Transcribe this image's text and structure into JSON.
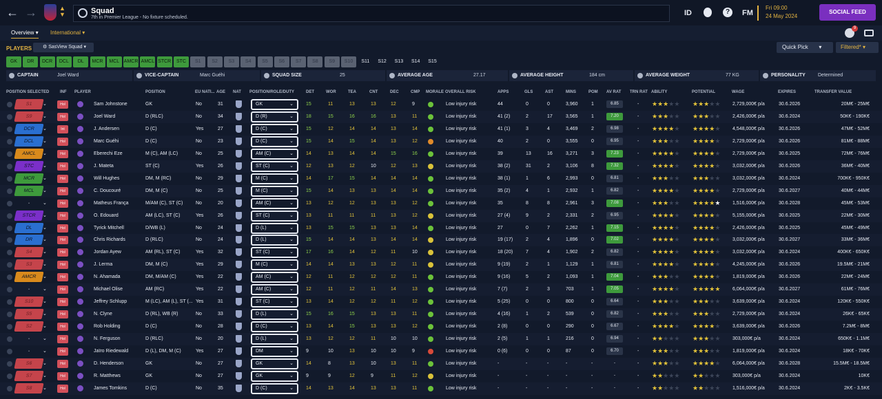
{
  "header": {
    "title": "Squad",
    "subtitle": "7th in Premier League - No fixture scheduled.",
    "id_label": "ID",
    "fm_label": "FM",
    "help": "?",
    "date_line1": "Fri 09:00",
    "date_line2": "24 May 2024",
    "social_label": "SOCIAL FEED",
    "notif_count": "9"
  },
  "subnav": {
    "tab1": "Overview",
    "tab2": "International"
  },
  "toolbar": {
    "players": "PLAYERS",
    "view": "SasView Squad",
    "quick_pick": "Quick Pick",
    "filtered": "Filtered*"
  },
  "positions": [
    "GK",
    "DR",
    "DCR",
    "DCL",
    "DL",
    "MCR",
    "MCL",
    "AMCR",
    "AMCL",
    "STCR",
    "STC",
    "S1",
    "S2",
    "S3",
    "S4",
    "S5",
    "S6",
    "S7",
    "S8",
    "S9",
    "S10",
    "S11",
    "S12",
    "S13",
    "S14",
    "S15"
  ],
  "info": {
    "captain_lbl": "CAPTAIN",
    "captain": "Joel Ward",
    "vice_lbl": "VICE-CAPTAIN",
    "vice": "Marc Guéhi",
    "size_lbl": "SQUAD SIZE",
    "size": "25",
    "age_lbl": "AVERAGE AGE",
    "age": "27.17",
    "height_lbl": "AVERAGE HEIGHT",
    "height": "184 cm",
    "weight_lbl": "AVERAGE WEIGHT",
    "weight": "77 KG",
    "pers_lbl": "PERSONALITY",
    "pers": "Determined"
  },
  "columns": [
    "POSITION SELECTED",
    "INF",
    "PLAYER",
    "POSITION",
    "EU NATI...",
    "AGE",
    "NAT",
    "POSITION/ROLE/DUTY",
    "DET",
    "WOR",
    "TEA",
    "CNT",
    "DEC",
    "CMP",
    "MORALE",
    "OVERALL RISK",
    "APPS",
    "GLS",
    "AST",
    "MINS",
    "POM",
    "AV RAT",
    "TRN RAT",
    "ABILITY",
    "POTENTIAL",
    "WAGE",
    "EXPIRES",
    "TRANSFER VALUE"
  ],
  "colors": {
    "gk": "#c5444b",
    "dr": "#2a6fd0",
    "dcr": "#2a6fd0",
    "amcl": "#d98a1c",
    "stc": "#7b2fc9",
    "mcr": "#3e9a3c",
    "green_morale": "#6cc23a",
    "yellow_morale": "#d9c23a",
    "orange_morale": "#e08a2a",
    "red_morale": "#d84a3a",
    "accent": "#e3b341"
  },
  "players": [
    {
      "sel": "S1",
      "selc": "#c5444b",
      "inf": "Hol",
      "name": "Sam Johnstone",
      "pos": "GK",
      "eu": "No",
      "age": "31",
      "role": "GK",
      "det": "15",
      "wor": "11",
      "tea": "13",
      "cnt": "13",
      "dec": "12",
      "cmp": "9",
      "mor": "#6cc23a",
      "risk": "Low injury risk",
      "apps": "44",
      "gls": "0",
      "ast": "0",
      "mins": "3,960",
      "pom": "1",
      "avrat": "6.85",
      "avbg": "#2a3448",
      "trn": "-",
      "ab": 3,
      "abh": 0,
      "po": 3,
      "poh": 0,
      "wage": "2,729,000€ p/a",
      "exp": "30.6.2026",
      "tv": "20M€ - 25M€"
    },
    {
      "sel": "S9",
      "selc": "#c5444b",
      "inf": "Hol",
      "name": "Joel Ward",
      "pos": "D (RLC)",
      "eu": "No",
      "age": "34",
      "role": "D (R)",
      "det": "18",
      "wor": "15",
      "tea": "16",
      "cnt": "16",
      "dec": "13",
      "cmp": "11",
      "mor": "#6cc23a",
      "risk": "Low injury risk",
      "apps": "41 (2)",
      "gls": "2",
      "ast": "17",
      "mins": "3,565",
      "pom": "1",
      "avrat": "7.20",
      "avbg": "#3e9a3c",
      "trn": "-",
      "ab": 2,
      "abh": 1,
      "po": 2,
      "poh": 1,
      "wage": "2,426,000€ p/a",
      "exp": "30.6.2024",
      "tv": "50K€ - 190K€"
    },
    {
      "sel": "DCR",
      "selc": "#2a6fd0",
      "inf": "Int",
      "name": "J. Andersen",
      "pos": "D (C)",
      "eu": "Yes",
      "age": "27",
      "role": "D (C)",
      "det": "15",
      "wor": "12",
      "tea": "14",
      "cnt": "14",
      "dec": "13",
      "cmp": "14",
      "mor": "#6cc23a",
      "risk": "Low injury risk",
      "apps": "41 (1)",
      "gls": "3",
      "ast": "4",
      "mins": "3,469",
      "pom": "2",
      "avrat": "6.98",
      "avbg": "#2a3448",
      "trn": "-",
      "ab": 3,
      "abh": 1,
      "po": 3,
      "poh": 1,
      "wage": "4,548,000€ p/a",
      "exp": "30.6.2026",
      "tv": "47M€ - 52M€"
    },
    {
      "sel": "DCL",
      "selc": "#2a6fd0",
      "inf": "Hol",
      "name": "Marc Guéhi",
      "pos": "D (C)",
      "eu": "No",
      "age": "23",
      "role": "D (C)",
      "det": "15",
      "wor": "14",
      "tea": "15",
      "cnt": "14",
      "dec": "13",
      "cmp": "12",
      "mor": "#e08a2a",
      "risk": "Low injury risk",
      "apps": "40",
      "gls": "2",
      "ast": "0",
      "mins": "3,555",
      "pom": "0",
      "avrat": "6.95",
      "avbg": "#2a3448",
      "trn": "-",
      "ab": 3,
      "abh": 0,
      "po": 4,
      "poh": 0,
      "wage": "2,729,000€ p/a",
      "exp": "30.6.2026",
      "tv": "81M€ - 88M€"
    },
    {
      "sel": "AMCL",
      "selc": "#d98a1c",
      "inf": "Hol",
      "name": "Eberechi Eze",
      "pos": "M (C), AM (LC)",
      "eu": "No",
      "age": "25",
      "role": "AM (C)",
      "det": "14",
      "wor": "13",
      "tea": "14",
      "cnt": "14",
      "dec": "15",
      "cmp": "16",
      "mor": "#6cc23a",
      "risk": "Low injury risk",
      "apps": "39",
      "gls": "13",
      "ast": "16",
      "mins": "3,271",
      "pom": "3",
      "avrat": "7.23",
      "avbg": "#3e9a3c",
      "trn": "-",
      "ab": 3,
      "abh": 1,
      "po": 3,
      "poh": 1,
      "wage": "2,729,000€ p/a",
      "exp": "30.6.2025",
      "tv": "72M€ - 76M€"
    },
    {
      "sel": "STC",
      "selc": "#7b2fc9",
      "inf": "Hol",
      "name": "J. Mateta",
      "pos": "ST (C)",
      "eu": "Yes",
      "age": "26",
      "role": "ST (C)",
      "det": "12",
      "wor": "13",
      "tea": "12",
      "cnt": "10",
      "dec": "12",
      "cmp": "13",
      "mor": "#d9c23a",
      "risk": "Low injury risk",
      "apps": "38 (2)",
      "gls": "31",
      "ast": "2",
      "mins": "3,106",
      "pom": "8",
      "avrat": "7.32",
      "avbg": "#3e9a3c",
      "trn": "-",
      "ab": 3,
      "abh": 1,
      "po": 3,
      "poh": 1,
      "wage": "3,032,000€ p/a",
      "exp": "30.6.2026",
      "tv": "36M€ - 40M€"
    },
    {
      "sel": "MCR",
      "selc": "#3e9a3c",
      "inf": "Hol",
      "name": "Will Hughes",
      "pos": "DM, M (RC)",
      "eu": "No",
      "age": "29",
      "role": "M (C)",
      "det": "14",
      "wor": "17",
      "tea": "15",
      "cnt": "14",
      "dec": "14",
      "cmp": "14",
      "mor": "#6cc23a",
      "risk": "Low injury risk",
      "apps": "38 (1)",
      "gls": "1",
      "ast": "6",
      "mins": "2,993",
      "pom": "0",
      "avrat": "6.81",
      "avbg": "#2a3448",
      "trn": "-",
      "ab": 2,
      "abh": 1,
      "po": 2,
      "poh": 1,
      "wage": "3,032,000€ p/a",
      "exp": "30.6.2024",
      "tv": "700K€ - 950K€"
    },
    {
      "sel": "MCL",
      "selc": "#3e9a3c",
      "inf": "Hol",
      "name": "C. Doucouré",
      "pos": "DM, M (C)",
      "eu": "No",
      "age": "25",
      "role": "M (C)",
      "det": "15",
      "wor": "14",
      "tea": "13",
      "cnt": "13",
      "dec": "14",
      "cmp": "14",
      "mor": "#6cc23a",
      "risk": "Low injury risk",
      "apps": "35 (2)",
      "gls": "4",
      "ast": "1",
      "mins": "2,932",
      "pom": "1",
      "avrat": "6.82",
      "avbg": "#2a3448",
      "trn": "-",
      "ab": 3,
      "abh": 1,
      "po": 3,
      "poh": 1,
      "wage": "2,729,000€ p/a",
      "exp": "30.6.2027",
      "tv": "40M€ - 44M€"
    },
    {
      "sel": "-",
      "selc": "#1b2439",
      "inf": "Hol",
      "name": "Matheus França",
      "pos": "M/AM (C), ST (C)",
      "eu": "No",
      "age": "20",
      "role": "AM (C)",
      "det": "13",
      "wor": "12",
      "tea": "12",
      "cnt": "13",
      "dec": "13",
      "cmp": "12",
      "mor": "#6cc23a",
      "risk": "Low injury risk",
      "apps": "35",
      "gls": "8",
      "ast": "8",
      "mins": "2,961",
      "pom": "3",
      "avrat": "7.08",
      "avbg": "#3e9a3c",
      "trn": "-",
      "ab": 3,
      "abh": 0,
      "po": 4,
      "poh": 0,
      "pow": 1,
      "wage": "1,516,000€ p/a",
      "exp": "30.6.2028",
      "tv": "45M€ - 53M€"
    },
    {
      "sel": "STCR",
      "selc": "#7b2fc9",
      "inf": "Hol",
      "name": "O. Edouard",
      "pos": "AM (LC), ST (C)",
      "eu": "Yes",
      "age": "26",
      "role": "ST (C)",
      "det": "13",
      "wor": "11",
      "tea": "11",
      "cnt": "11",
      "dec": "13",
      "cmp": "12",
      "mor": "#d9c23a",
      "risk": "Low injury risk",
      "apps": "27 (4)",
      "gls": "9",
      "ast": "2",
      "mins": "2,331",
      "pom": "2",
      "avrat": "6.95",
      "avbg": "#2a3448",
      "trn": "-",
      "ab": 3,
      "abh": 1,
      "po": 3,
      "poh": 1,
      "wage": "5,155,000€ p/a",
      "exp": "30.6.2025",
      "tv": "22M€ - 30M€"
    },
    {
      "sel": "DL",
      "selc": "#2a6fd0",
      "inf": "Hol",
      "name": "Tyrick Mitchell",
      "pos": "D/WB (L)",
      "eu": "No",
      "age": "24",
      "role": "D (L)",
      "det": "13",
      "wor": "15",
      "tea": "15",
      "cnt": "13",
      "dec": "13",
      "cmp": "14",
      "mor": "#6cc23a",
      "risk": "Low injury risk",
      "apps": "27",
      "gls": "0",
      "ast": "7",
      "mins": "2,262",
      "pom": "1",
      "avrat": "7.15",
      "avbg": "#3e9a3c",
      "trn": "-",
      "ab": 3,
      "abh": 1,
      "po": 3,
      "poh": 1,
      "wage": "2,426,000€ p/a",
      "exp": "30.6.2025",
      "tv": "45M€ - 49M€"
    },
    {
      "sel": "DR",
      "selc": "#2a6fd0",
      "inf": "Hol",
      "name": "Chris Richards",
      "pos": "D (RLC)",
      "eu": "No",
      "age": "24",
      "role": "D (L)",
      "det": "15",
      "wor": "14",
      "tea": "14",
      "cnt": "13",
      "dec": "14",
      "cmp": "14",
      "mor": "#d9c23a",
      "risk": "Low injury risk",
      "apps": "19 (17)",
      "gls": "2",
      "ast": "4",
      "mins": "1,896",
      "pom": "0",
      "avrat": "7.02",
      "avbg": "#3e9a3c",
      "trn": "-",
      "ab": 3,
      "abh": 1,
      "po": 3,
      "poh": 1,
      "wage": "3,032,000€ p/a",
      "exp": "30.6.2027",
      "tv": "33M€ - 36M€"
    },
    {
      "sel": "S4",
      "selc": "#c5444b",
      "inf": "Hol",
      "name": "Jordan Ayew",
      "pos": "AM (RL), ST (C)",
      "eu": "Yes",
      "age": "32",
      "role": "ST (C)",
      "det": "17",
      "wor": "16",
      "tea": "14",
      "cnt": "12",
      "dec": "11",
      "cmp": "10",
      "mor": "#d9c23a",
      "risk": "Low injury risk",
      "apps": "18 (20)",
      "gls": "7",
      "ast": "4",
      "mins": "1,902",
      "pom": "2",
      "avrat": "6.82",
      "avbg": "#2a3448",
      "trn": "-",
      "ab": 3,
      "abh": 1,
      "po": 3,
      "poh": 1,
      "wage": "3,032,000€ p/a",
      "exp": "30.6.2024",
      "tv": "400K€ - 650K€"
    },
    {
      "sel": "S3",
      "selc": "#c5444b",
      "inf": "Hol",
      "name": "J. Lerma",
      "pos": "DM, M (C)",
      "eu": "Yes",
      "age": "29",
      "role": "M (C)",
      "det": "14",
      "wor": "14",
      "tea": "13",
      "cnt": "13",
      "dec": "12",
      "cmp": "11",
      "mor": "#d9c23a",
      "risk": "Low injury risk",
      "apps": "9 (19)",
      "gls": "2",
      "ast": "1",
      "mins": "1,129",
      "pom": "1",
      "avrat": "6.81",
      "avbg": "#2a3448",
      "trn": "-",
      "ab": 3,
      "abh": 1,
      "po": 3,
      "poh": 1,
      "wage": "4,245,000€ p/a",
      "exp": "30.6.2026",
      "tv": "19.5M€ - 21M€"
    },
    {
      "sel": "AMCR",
      "selc": "#d98a1c",
      "inf": "Hol",
      "name": "N. Ahamada",
      "pos": "DM, M/AM (C)",
      "eu": "Yes",
      "age": "22",
      "role": "AM (C)",
      "det": "12",
      "wor": "11",
      "tea": "12",
      "cnt": "12",
      "dec": "12",
      "cmp": "11",
      "mor": "#6cc23a",
      "risk": "Low injury risk",
      "apps": "9 (16)",
      "gls": "5",
      "ast": "2",
      "mins": "1,093",
      "pom": "1",
      "avrat": "7.04",
      "avbg": "#3e9a3c",
      "trn": "-",
      "ab": 3,
      "abh": 0,
      "po": 3,
      "poh": 1,
      "wage": "1,819,000€ p/a",
      "exp": "30.6.2026",
      "tv": "22M€ - 24M€"
    },
    {
      "sel": "-",
      "selc": "#1b2439",
      "inf": "Hol",
      "name": "Michael Olise",
      "pos": "AM (RC)",
      "eu": "Yes",
      "age": "22",
      "role": "AM (C)",
      "det": "12",
      "wor": "11",
      "tea": "12",
      "cnt": "11",
      "dec": "14",
      "cmp": "13",
      "mor": "#6cc23a",
      "risk": "Low injury risk",
      "apps": "7 (7)",
      "gls": "2",
      "ast": "3",
      "mins": "703",
      "pom": "1",
      "avrat": "7.05",
      "avbg": "#3e9a3c",
      "trn": "-",
      "ab": 3,
      "abh": 1,
      "po": 4,
      "poh": 1,
      "wage": "6,064,000€ p/a",
      "exp": "30.6.2027",
      "tv": "61M€ - 76M€"
    },
    {
      "sel": "S10",
      "selc": "#c5444b",
      "inf": "Hol",
      "name": "Jeffrey Schlupp",
      "pos": "M (LC), AM (L), ST (...",
      "eu": "Yes",
      "age": "31",
      "role": "ST (C)",
      "det": "13",
      "wor": "14",
      "tea": "12",
      "cnt": "12",
      "dec": "11",
      "cmp": "12",
      "mor": "#6cc23a",
      "risk": "Low injury risk",
      "apps": "5 (25)",
      "gls": "0",
      "ast": "0",
      "mins": "800",
      "pom": "0",
      "avrat": "6.64",
      "avbg": "#2a3448",
      "trn": "-",
      "ab": 3,
      "abh": 0,
      "po": 3,
      "poh": 0,
      "wage": "3,639,000€ p/a",
      "exp": "30.6.2024",
      "tv": "120K€ - 550K€"
    },
    {
      "sel": "S5",
      "selc": "#c5444b",
      "inf": "Hol",
      "name": "N. Clyne",
      "pos": "D (RL), WB (R)",
      "eu": "No",
      "age": "33",
      "role": "D (L)",
      "det": "15",
      "wor": "16",
      "tea": "15",
      "cnt": "13",
      "dec": "13",
      "cmp": "11",
      "mor": "#6cc23a",
      "risk": "Low injury risk",
      "apps": "4 (16)",
      "gls": "1",
      "ast": "2",
      "mins": "539",
      "pom": "0",
      "avrat": "6.82",
      "avbg": "#2a3448",
      "trn": "-",
      "ab": 2,
      "abh": 1,
      "po": 2,
      "poh": 1,
      "wage": "2,729,000€ p/a",
      "exp": "30.6.2024",
      "tv": "26K€ - 65K€"
    },
    {
      "sel": "S2",
      "selc": "#c5444b",
      "inf": "Hol",
      "name": "Rob Holding",
      "pos": "D (C)",
      "eu": "No",
      "age": "28",
      "role": "D (C)",
      "det": "13",
      "wor": "14",
      "tea": "15",
      "cnt": "13",
      "dec": "13",
      "cmp": "12",
      "mor": "#6cc23a",
      "risk": "Low injury risk",
      "apps": "2 (8)",
      "gls": "0",
      "ast": "0",
      "mins": "290",
      "pom": "0",
      "avrat": "6.67",
      "avbg": "#2a3448",
      "trn": "-",
      "ab": 3,
      "abh": 1,
      "po": 3,
      "poh": 1,
      "wage": "3,639,000€ p/a",
      "exp": "30.6.2026",
      "tv": "7.2M€ - 8M€"
    },
    {
      "sel": "-",
      "selc": "#1b2439",
      "inf": "Hol",
      "name": "N. Ferguson",
      "pos": "D (RLC)",
      "eu": "No",
      "age": "20",
      "role": "D (L)",
      "det": "13",
      "wor": "12",
      "tea": "12",
      "cnt": "11",
      "dec": "10",
      "cmp": "10",
      "mor": "#6cc23a",
      "risk": "Low injury risk",
      "apps": "2 (5)",
      "gls": "1",
      "ast": "1",
      "mins": "216",
      "pom": "0",
      "avrat": "6.94",
      "avbg": "#2a3448",
      "trn": "-",
      "ab": 2,
      "abh": 0,
      "po": 3,
      "poh": 0,
      "wage": "303,000€ p/a",
      "exp": "30.6.2024",
      "tv": "650K€ - 1.1M€"
    },
    {
      "sel": "-",
      "selc": "#1b2439",
      "inf": "Hol",
      "name": "Jaïro Riedewald",
      "pos": "D (L), DM, M (C)",
      "eu": "Yes",
      "age": "27",
      "role": "DM",
      "det": "9",
      "wor": "10",
      "tea": "13",
      "cnt": "10",
      "dec": "10",
      "cmp": "9",
      "mor": "#d84a3a",
      "risk": "Low injury risk",
      "apps": "0 (6)",
      "gls": "0",
      "ast": "0",
      "mins": "87",
      "pom": "0",
      "avrat": "6.70",
      "avbg": "#2a3448",
      "trn": "-",
      "ab": 2,
      "abh": 1,
      "po": 2,
      "poh": 1,
      "wage": "1,819,000€ p/a",
      "exp": "30.6.2024",
      "tv": "18K€ - 70K€"
    },
    {
      "sel": "S6",
      "selc": "#c5444b",
      "inf": "Hol",
      "name": "D. Henderson",
      "pos": "GK",
      "eu": "No",
      "age": "27",
      "role": "GK",
      "det": "14",
      "wor": "8",
      "tea": "13",
      "cnt": "10",
      "dec": "13",
      "cmp": "11",
      "mor": "#6cc23a",
      "risk": "Low injury risk",
      "apps": "-",
      "gls": "-",
      "ast": "-",
      "mins": "-",
      "pom": "-",
      "avrat": "-",
      "avbg": "transparent",
      "trn": "-",
      "ab": 3,
      "abh": 0,
      "po": 3,
      "poh": 1,
      "wage": "6,064,000€ p/a",
      "exp": "30.6.2028",
      "tv": "15.5M€ - 18.5M€"
    },
    {
      "sel": "S7",
      "selc": "#c5444b",
      "inf": "Hol",
      "name": "R. Matthews",
      "pos": "GK",
      "eu": "No",
      "age": "27",
      "role": "GK",
      "det": "9",
      "wor": "9",
      "tea": "12",
      "cnt": "9",
      "dec": "11",
      "cmp": "12",
      "mor": "#d9c23a",
      "risk": "Low injury risk",
      "apps": "-",
      "gls": "-",
      "ast": "-",
      "mins": "-",
      "pom": "-",
      "avrat": "-",
      "avbg": "transparent",
      "trn": "-",
      "ab": 2,
      "abh": 0,
      "po": 2,
      "poh": 0,
      "wage": "303,000€ p/a",
      "exp": "30.6.2024",
      "tv": "10K€"
    },
    {
      "sel": "S8",
      "selc": "#c5444b",
      "inf": "Hol",
      "name": "James Tomkins",
      "pos": "D (C)",
      "eu": "No",
      "age": "35",
      "role": "D (C)",
      "det": "14",
      "wor": "13",
      "tea": "14",
      "cnt": "13",
      "dec": "13",
      "cmp": "11",
      "mor": "#6cc23a",
      "risk": "Low injury risk",
      "apps": "-",
      "gls": "-",
      "ast": "-",
      "mins": "-",
      "pom": "-",
      "avrat": "-",
      "avbg": "transparent",
      "trn": "-",
      "ab": 2,
      "abh": 0,
      "po": 2,
      "poh": 0,
      "wage": "1,516,000€ p/a",
      "exp": "30.6.2024",
      "tv": "2K€ - 3.5K€"
    }
  ]
}
